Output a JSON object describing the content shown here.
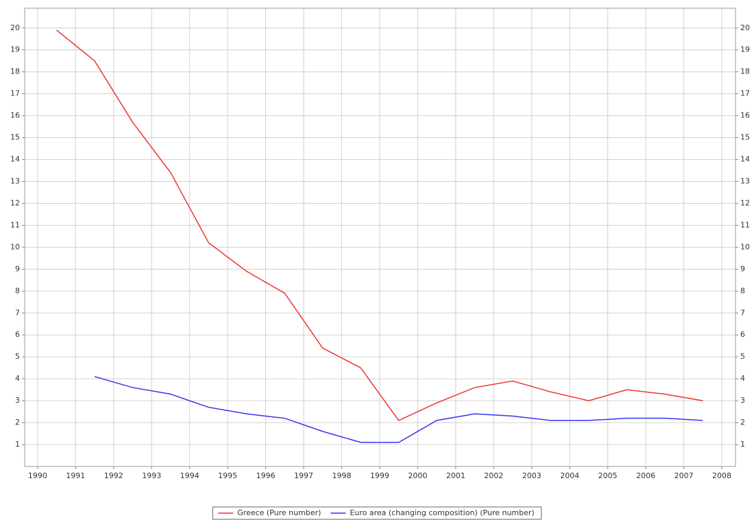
{
  "chart_data": {
    "type": "line",
    "x": [
      1990.5,
      1991.5,
      1992.5,
      1993.5,
      1994.5,
      1995.5,
      1996.5,
      1997.5,
      1998.5,
      1999.5,
      2000.5,
      2001.5,
      2002.5,
      2003.5,
      2004.5,
      2005.5,
      2006.5,
      2007.5
    ],
    "series": [
      {
        "name": "Greece (Pure number)",
        "color": "#ee3333",
        "values": [
          19.9,
          18.5,
          15.7,
          13.4,
          10.2,
          8.9,
          7.9,
          5.4,
          4.5,
          2.1,
          2.9,
          3.6,
          3.9,
          3.4,
          3.0,
          3.5,
          3.3,
          3.0
        ]
      },
      {
        "name": "Euro area (changing composition) (Pure number)",
        "color": "#3333ee",
        "values": [
          null,
          4.1,
          3.6,
          3.3,
          2.7,
          2.4,
          2.2,
          1.6,
          1.1,
          1.1,
          2.1,
          2.4,
          2.3,
          2.1,
          2.1,
          2.2,
          2.2,
          2.1
        ]
      }
    ],
    "xlim": [
      1989.66,
      2008.36
    ],
    "xticks": [
      1990,
      1991,
      1992,
      1993,
      1994,
      1995,
      1996,
      1997,
      1998,
      1999,
      2000,
      2001,
      2002,
      2003,
      2004,
      2005,
      2006,
      2007,
      2008
    ],
    "ylim": [
      0,
      20.9
    ],
    "yticks": [
      1,
      2,
      3,
      4,
      5,
      6,
      7,
      8,
      9,
      10,
      11,
      12,
      13,
      14,
      15,
      16,
      17,
      18,
      19,
      20
    ],
    "grid": true,
    "legend": "bottom"
  }
}
